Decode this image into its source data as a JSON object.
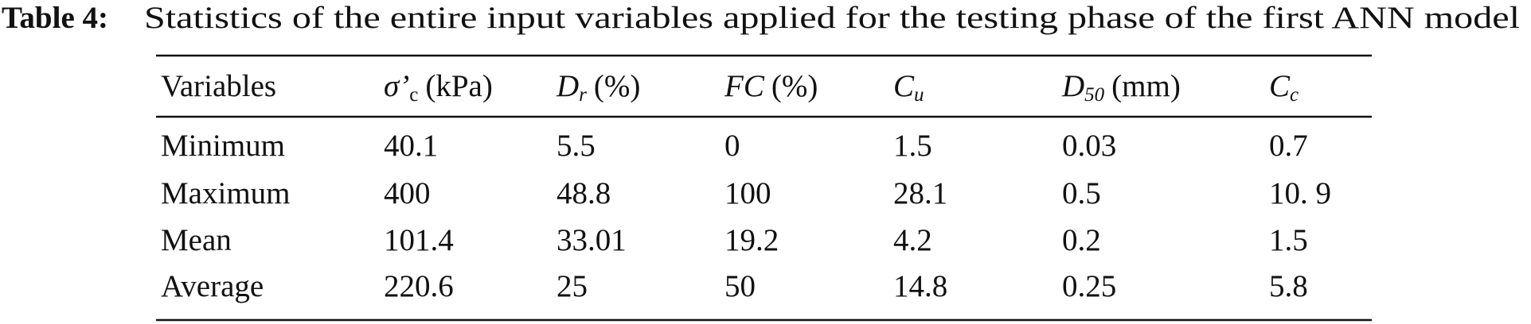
{
  "caption": {
    "label": "Table 4:",
    "text": "Statistics of the entire input variables applied for the testing phase of the first ANN model"
  },
  "table": {
    "columns": [
      {
        "symbol": "Variables"
      },
      {
        "symbol": "σ’",
        "sub": "c",
        "unit": "(kPa)"
      },
      {
        "symbol": "D",
        "sub": "r",
        "unit": "(%)"
      },
      {
        "symbol": "FC",
        "unit": "(%)"
      },
      {
        "symbol": "C",
        "sub": "u"
      },
      {
        "symbol": "D",
        "sub": "50",
        "unit": "(mm)"
      },
      {
        "symbol": "C",
        "sub": "c"
      }
    ],
    "rows": [
      [
        "Minimum",
        "40.1",
        "5.5",
        "0",
        "1.5",
        "0.03",
        "0.7"
      ],
      [
        "Maximum",
        "400",
        "48.8",
        "100",
        "28.1",
        "0.5",
        "10. 9"
      ],
      [
        "Mean",
        "101.4",
        "33.01",
        "19.2",
        "4.2",
        "0.2",
        "1.5"
      ],
      [
        "Average",
        "220.6",
        "25",
        "50",
        "14.8",
        "0.25",
        "5.8"
      ]
    ]
  }
}
